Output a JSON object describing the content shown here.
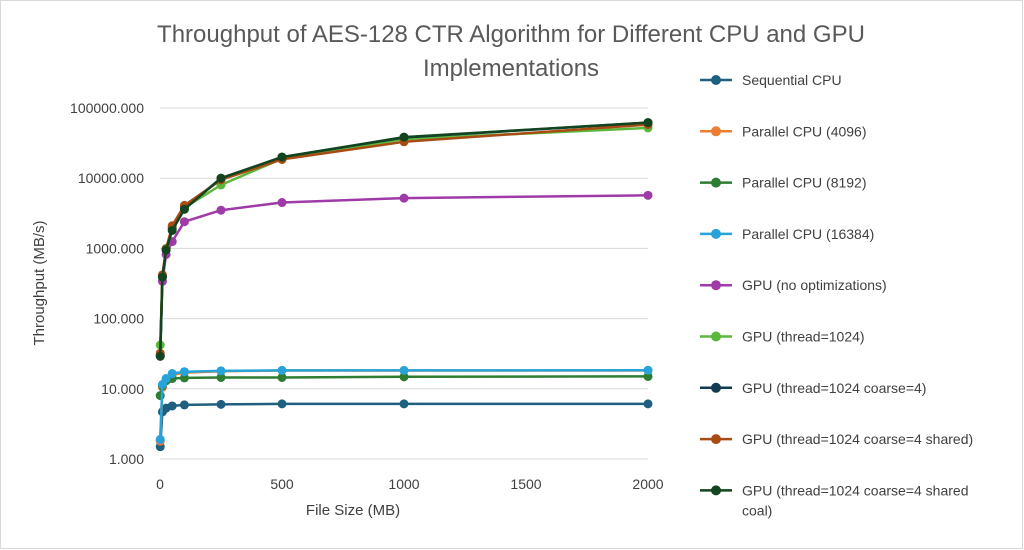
{
  "chart_data": {
    "type": "line",
    "title": "Throughput of AES-128 CTR Algorithm for Different CPU and GPU Implementations",
    "title_lines": [
      "Throughput of AES-128 CTR Algorithm for Different CPU and GPU",
      "Implementations"
    ],
    "xlabel": "File Size (MB)",
    "ylabel": "Throughput (MB/s)",
    "y_scale": "log",
    "xlim": [
      0,
      2000
    ],
    "ylim": [
      1,
      100000
    ],
    "x_ticks": [
      "0",
      "500",
      "1000",
      "1500",
      "2000"
    ],
    "x_tick_values": [
      0,
      500,
      1000,
      1500,
      2000
    ],
    "y_ticks": [
      "1.000",
      "10.000",
      "100.000",
      "1000.000",
      "10000.000",
      "100000.000"
    ],
    "y_tick_values": [
      1,
      10,
      100,
      1000,
      10000,
      100000
    ],
    "grid": "horizontal",
    "legend_position": "right",
    "x": [
      1,
      10,
      25,
      50,
      100,
      250,
      500,
      1000,
      2000
    ],
    "series": [
      {
        "name": "Sequential CPU",
        "color": "#1f5f7f",
        "values": [
          1.5,
          4.7,
          5.3,
          5.7,
          5.9,
          6.0,
          6.1,
          6.1,
          6.1
        ]
      },
      {
        "name": "Parallel CPU (4096)",
        "color": "#ed7d31",
        "values": [
          1.8,
          10.5,
          13.5,
          15.8,
          17.0,
          17.8,
          18.2,
          18.2,
          18.2
        ]
      },
      {
        "name": "Parallel CPU (8192)",
        "color": "#2e7d32",
        "values": [
          8.0,
          11.0,
          13.0,
          14.0,
          14.3,
          14.5,
          14.5,
          14.8,
          15.0
        ]
      },
      {
        "name": "Parallel CPU (16384)",
        "color": "#27a3d9",
        "values": [
          1.9,
          11.5,
          14.0,
          16.5,
          17.5,
          18.0,
          18.3,
          18.3,
          18.4
        ]
      },
      {
        "name": "GPU (no optimizations)",
        "color": "#a03aa8",
        "values": [
          30,
          340,
          820,
          1250,
          2400,
          3500,
          4500,
          5200,
          5700
        ]
      },
      {
        "name": "GPU (thread=1024)",
        "color": "#5cb83c",
        "values": [
          42,
          400,
          1000,
          2000,
          3800,
          8000,
          19000,
          36000,
          52000
        ]
      },
      {
        "name": "GPU (thread=1024 coarse=4)",
        "color": "#123a52",
        "values": [
          30,
          400,
          950,
          1900,
          3700,
          10000,
          20000,
          38000,
          62000
        ]
      },
      {
        "name": "GPU (thread=1024 coarse=4 shared)",
        "color": "#a84c14",
        "values": [
          32,
          420,
          980,
          2100,
          4100,
          9500,
          18500,
          33000,
          58000
        ]
      },
      {
        "name": "GPU (thread=1024 coarse=4 shared coal)",
        "color": "#12451f",
        "values": [
          29,
          390,
          950,
          1800,
          3600,
          10000,
          20000,
          38500,
          62000
        ]
      }
    ]
  }
}
